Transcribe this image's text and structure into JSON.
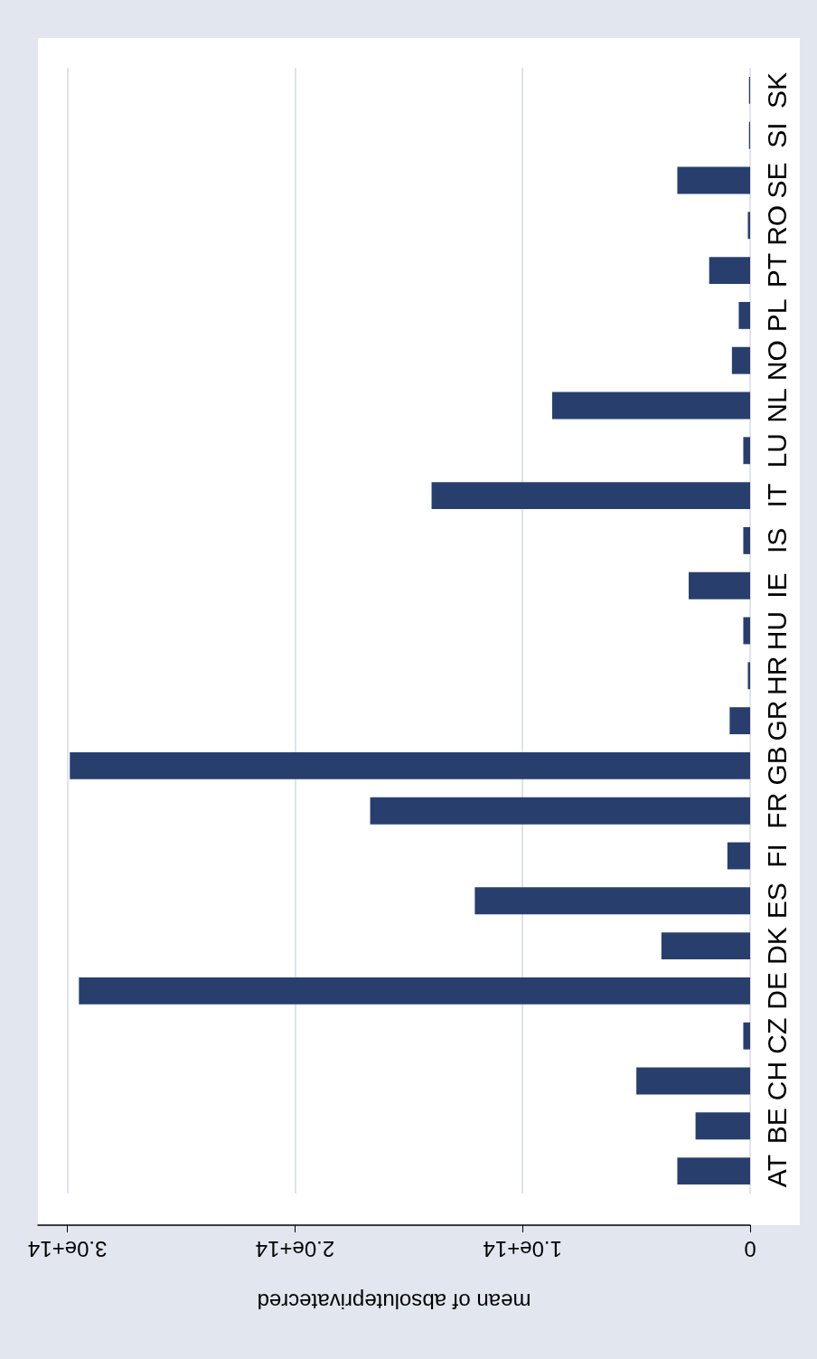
{
  "chart_data": {
    "type": "bar",
    "orientation": "horizontal",
    "xlabel": "mean of absoluteprivatecred",
    "categories": [
      "SK",
      "SI",
      "SE",
      "RO",
      "PT",
      "PL",
      "NO",
      "NL",
      "LU",
      "IT",
      "IS",
      "IE",
      "HU",
      "HR",
      "GR",
      "GB",
      "FR",
      "FI",
      "ES",
      "DK",
      "DE",
      "CZ",
      "CH",
      "BE",
      "AT"
    ],
    "values": [
      500000000000.0,
      500000000000.0,
      32000000000000.0,
      1000000000000.0,
      18000000000000.0,
      5000000000000.0,
      8000000000000.0,
      87000000000000.0,
      3000000000000.0,
      140000000000000.0,
      3000000000000.0,
      27000000000000.0,
      3000000000000.0,
      1000000000000.0,
      9000000000000.0,
      299000000000000.0,
      167000000000000.0,
      10000000000000.0,
      121000000000000.0,
      39000000000000.0,
      295000000000000.0,
      3000000000000.0,
      50000000000000.0,
      24000000000000.0,
      32000000000000.0
    ],
    "color": "#283f6e",
    "xlim": [
      313000000000000.0,
      0
    ],
    "xticks": [
      {
        "value": 300000000000000.0,
        "label": "3.0e+14"
      },
      {
        "value": 200000000000000.0,
        "label": "2.0e+14"
      },
      {
        "value": 100000000000000.0,
        "label": "1.0e+14"
      },
      0
    ],
    "grid": "x"
  }
}
